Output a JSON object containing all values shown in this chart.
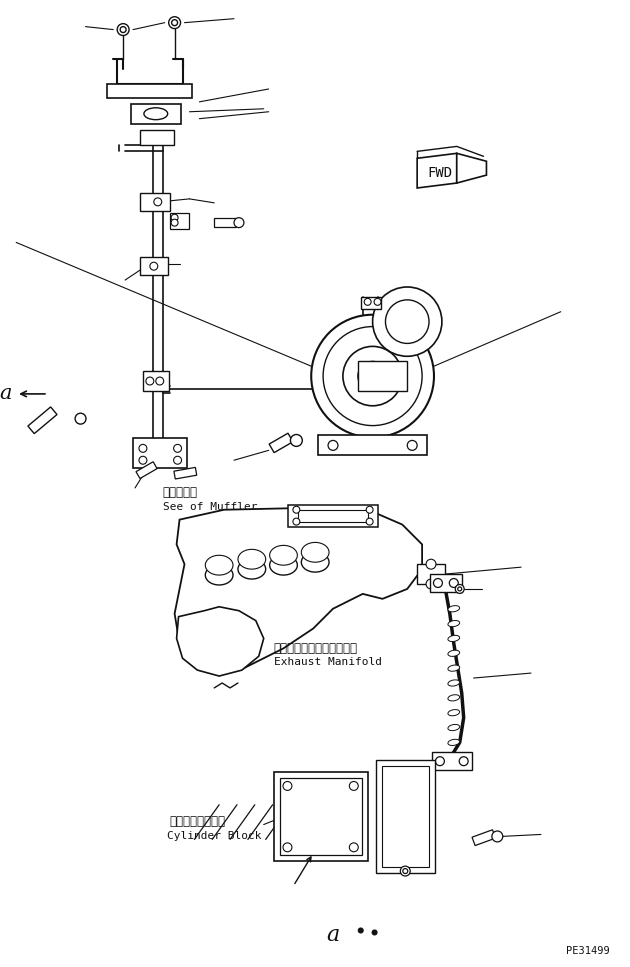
{
  "bg_color": "#ffffff",
  "line_color": "#111111",
  "lw": 1.0,
  "label_muffler_jp": "マフラ参照",
  "label_muffler_en": "See of Muffler",
  "label_exhaust_jp": "エキゾーストマニホールド",
  "label_exhaust_en": "Exhaust Manifold",
  "label_cylinder_jp": "シリンダブロック",
  "label_cylinder_en": "Cylinder Block",
  "label_fwd": "FWD",
  "label_a_left": "a",
  "label_a_bottom": "a",
  "part_number": "PE31499"
}
